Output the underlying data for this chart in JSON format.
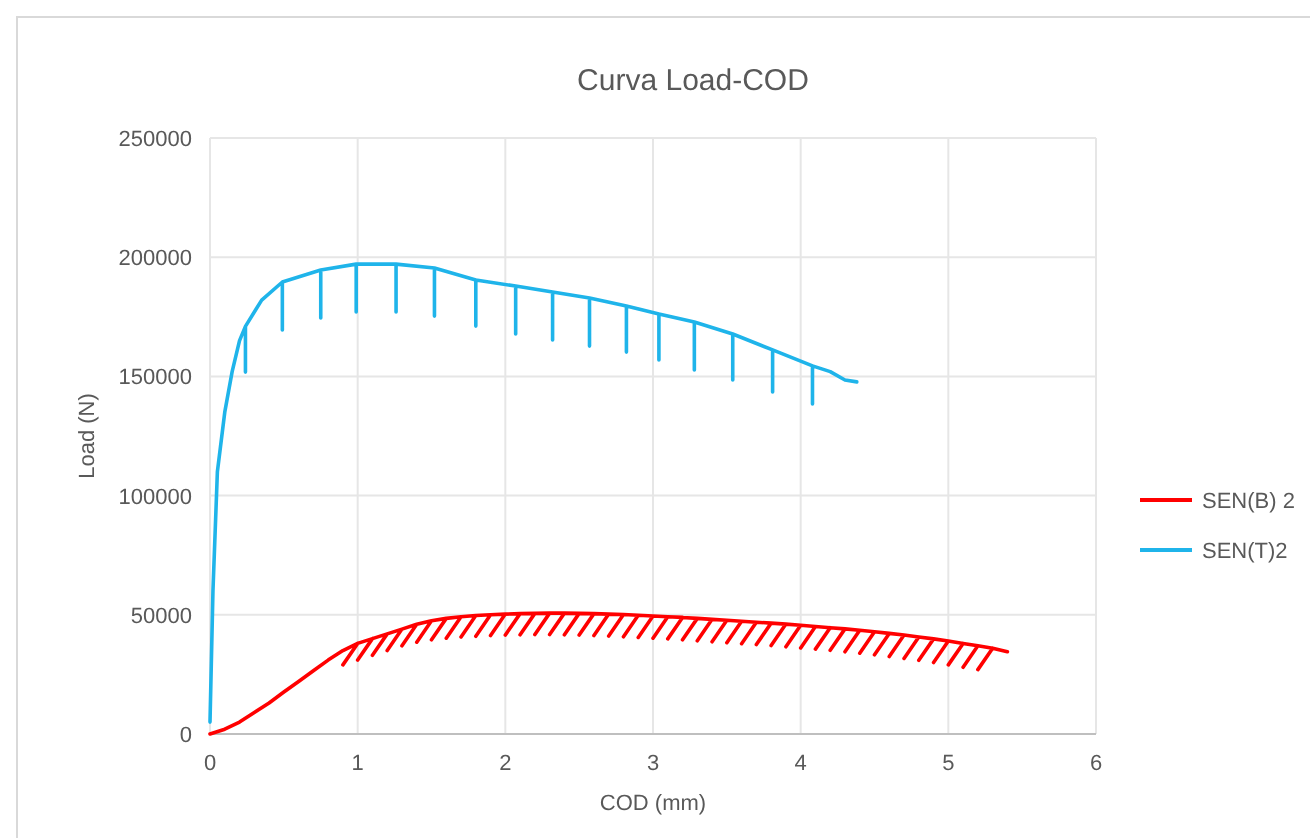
{
  "chart_data": {
    "type": "line",
    "title": "Curva Load-COD",
    "xlabel": "COD (mm)",
    "ylabel": "Load (N)",
    "xlim": [
      0,
      6
    ],
    "xticks": [
      0,
      1,
      2,
      3,
      4,
      5,
      6
    ],
    "ylim": [
      0,
      250000
    ],
    "yticks": [
      0,
      50000,
      100000,
      150000,
      200000,
      250000
    ],
    "grid": true,
    "legend": "right",
    "marker": "none",
    "line_style": "solid",
    "series": [
      {
        "name": "SEN(B) 2",
        "color": "#ff0000",
        "x": [
          0,
          0.1,
          0.2,
          0.3,
          0.4,
          0.5,
          0.6,
          0.7,
          0.8,
          0.9,
          1.0,
          0.9,
          1.0,
          1.1,
          1.0,
          1.1,
          1.2,
          1.1,
          1.2,
          1.3,
          1.2,
          1.3,
          1.4,
          1.3,
          1.4,
          1.5,
          1.4,
          1.5,
          1.6,
          1.5,
          1.6,
          1.7,
          1.6,
          1.7,
          1.8,
          1.7,
          1.8,
          1.9,
          1.8,
          1.9,
          2.0,
          1.9,
          2.0,
          2.1,
          2.0,
          2.1,
          2.2,
          2.1,
          2.2,
          2.3,
          2.2,
          2.3,
          2.4,
          2.3,
          2.4,
          2.5,
          2.4,
          2.5,
          2.6,
          2.5,
          2.6,
          2.7,
          2.6,
          2.7,
          2.8,
          2.7,
          2.8,
          2.9,
          2.8,
          2.9,
          3.0,
          2.9,
          3.0,
          3.1,
          3.0,
          3.1,
          3.2,
          3.1,
          3.2,
          3.3,
          3.2,
          3.3,
          3.4,
          3.3,
          3.4,
          3.5,
          3.4,
          3.5,
          3.6,
          3.5,
          3.6,
          3.7,
          3.6,
          3.7,
          3.8,
          3.7,
          3.8,
          3.9,
          3.8,
          3.9,
          4.0,
          3.9,
          4.0,
          4.1,
          4.0,
          4.1,
          4.2,
          4.1,
          4.2,
          4.3,
          4.2,
          4.3,
          4.4,
          4.3,
          4.4,
          4.5,
          4.4,
          4.5,
          4.6,
          4.5,
          4.6,
          4.7,
          4.6,
          4.7,
          4.8,
          4.7,
          4.8,
          4.9,
          4.8,
          4.9,
          5.0,
          4.9,
          5.0,
          5.1,
          5.0,
          5.1,
          5.2,
          5.1,
          5.2,
          5.3,
          5.2,
          5.3,
          5.4
        ],
        "values": [
          0,
          2000,
          5000,
          9000,
          13000,
          17600,
          22000,
          26500,
          31000,
          35000,
          38000,
          29000,
          38000,
          40000,
          31000,
          40000,
          42000,
          33000,
          42000,
          44000,
          35000,
          44000,
          46000,
          37000,
          46000,
          47500,
          38500,
          47500,
          48500,
          39500,
          48500,
          49200,
          40200,
          49200,
          49700,
          40700,
          49700,
          50000,
          41000,
          50000,
          50300,
          41300,
          50300,
          50500,
          41500,
          50500,
          50600,
          41600,
          50600,
          50700,
          41700,
          50700,
          50700,
          41700,
          50700,
          50600,
          41600,
          50600,
          50500,
          41500,
          50500,
          50300,
          41300,
          50300,
          50100,
          41100,
          50100,
          49800,
          40800,
          49800,
          49500,
          40500,
          49500,
          49200,
          40200,
          49200,
          48900,
          39900,
          48900,
          48500,
          39500,
          48500,
          48100,
          39100,
          48100,
          47700,
          38700,
          47700,
          47300,
          38300,
          47300,
          46900,
          37900,
          46900,
          46500,
          37500,
          46500,
          46100,
          37100,
          46100,
          45600,
          36600,
          45600,
          45100,
          36100,
          45100,
          44600,
          35600,
          44600,
          44100,
          35100,
          44100,
          43500,
          34500,
          43500,
          42900,
          33900,
          42900,
          42200,
          33200,
          42200,
          41500,
          32500,
          41500,
          40700,
          31700,
          40700,
          39900,
          30900,
          39900,
          39000,
          30000,
          39000,
          38000,
          29000,
          38000,
          37000,
          28000,
          37000,
          36000,
          27000,
          36000,
          34500
        ]
      },
      {
        "name": "SEN(T)2",
        "color": "#1fb4ea",
        "x": [
          0,
          0.02,
          0.05,
          0.1,
          0.15,
          0.2,
          0.24,
          0.24,
          0.24,
          0.35,
          0.49,
          0.49,
          0.49,
          0.75,
          0.75,
          0.75,
          0.99,
          0.99,
          0.99,
          1.26,
          1.26,
          1.26,
          1.52,
          1.52,
          1.52,
          1.8,
          1.8,
          1.8,
          2.07,
          2.07,
          2.07,
          2.32,
          2.32,
          2.32,
          2.57,
          2.57,
          2.57,
          2.82,
          2.82,
          2.82,
          3.04,
          3.04,
          3.04,
          3.28,
          3.28,
          3.28,
          3.54,
          3.54,
          3.54,
          3.81,
          3.81,
          3.81,
          4.08,
          4.08,
          4.08,
          4.2,
          4.3,
          4.38
        ],
        "values": [
          5000,
          60000,
          110000,
          135000,
          152000,
          165000,
          171000,
          151800,
          171000,
          182000,
          189600,
          169500,
          189600,
          194600,
          174500,
          194600,
          197100,
          177000,
          197100,
          197100,
          177000,
          197100,
          195500,
          175300,
          195500,
          190400,
          171100,
          190400,
          187900,
          167800,
          187900,
          185400,
          165300,
          185400,
          182900,
          162700,
          182900,
          179500,
          160200,
          179500,
          176200,
          156900,
          176200,
          172800,
          152700,
          172800,
          167800,
          148500,
          167800,
          161100,
          143500,
          161100,
          154400,
          138400,
          154400,
          152000,
          148500,
          147700
        ]
      }
    ]
  }
}
